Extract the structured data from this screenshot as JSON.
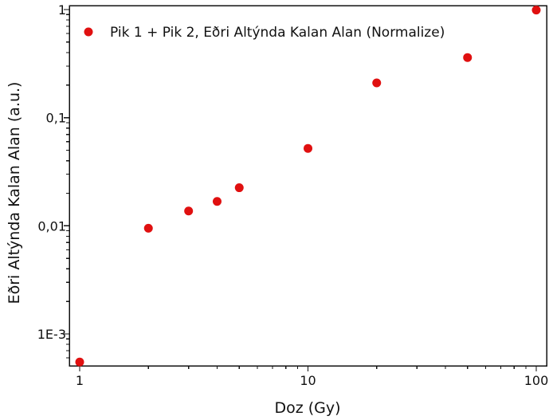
{
  "chart_data": {
    "type": "scatter",
    "x_scale": "log",
    "y_scale": "log",
    "xlim": [
      1,
      100
    ],
    "ylim": [
      0.0005,
      1
    ],
    "xlabel": "Doz (Gy)",
    "ylabel": "Eðri Altýnda Kalan Alan (a.u.)",
    "x_ticks": [
      1,
      10,
      100
    ],
    "x_tick_labels": [
      "1",
      "10",
      "100"
    ],
    "y_ticks": [
      0.001,
      0.01,
      0.1,
      1
    ],
    "y_tick_labels": [
      "1E-3",
      "0,01",
      "0,1",
      "1"
    ],
    "grid": false,
    "legend_position": "top-right",
    "series": [
      {
        "name": "Pik 1 + Pik 2, Eðri Altýnda Kalan Alan (Normalize)",
        "color": "#e01010",
        "x": [
          1,
          2,
          3,
          4,
          5,
          10,
          20,
          50,
          100
        ],
        "y": [
          0.00055,
          0.0095,
          0.0137,
          0.0168,
          0.0225,
          0.052,
          0.21,
          0.36,
          0.99
        ]
      }
    ]
  }
}
